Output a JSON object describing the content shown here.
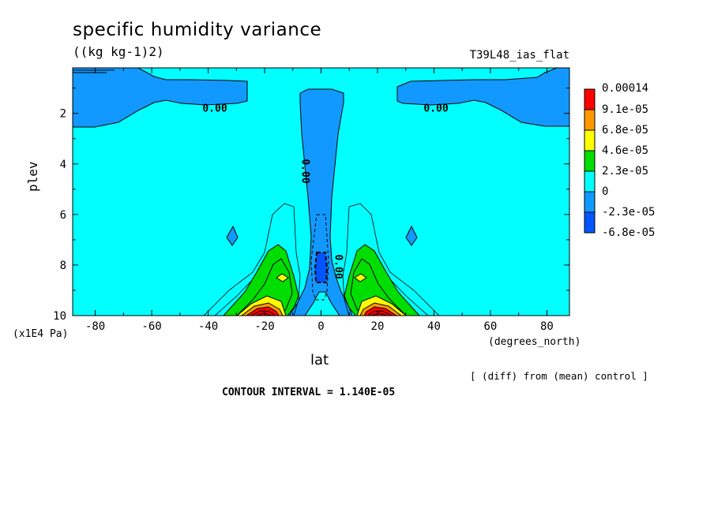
{
  "header": {
    "title": "specific humidity variance",
    "units": "((kg kg-1)2)",
    "run_label": "T39L48_ias_flat"
  },
  "footer": {
    "diff_note": "[ (diff) from (mean) control ]",
    "contour_interval": "CONTOUR INTERVAL = 1.140E-05"
  },
  "chart_data": {
    "type": "contour",
    "xlabel": "lat",
    "x_unit": "(degrees_north)",
    "ylabel": "plev",
    "y_unit": "(x1E4 Pa)",
    "xlim": [
      -88,
      88
    ],
    "ylim": [
      10,
      0.2
    ],
    "x_ticks": [
      -80,
      -60,
      -40,
      -20,
      0,
      20,
      40,
      60,
      80
    ],
    "y_ticks": [
      2,
      4,
      6,
      8,
      10
    ],
    "contour_interval": 1.14e-05,
    "legend": {
      "placement": "right",
      "levels": [
        "0.00014",
        "9.1e-05",
        "6.8e-05",
        "4.6e-05",
        "2.3e-05",
        "0",
        "-2.3e-05",
        "-6.8e-05"
      ],
      "colors": [
        "#ff0000",
        "#ff9900",
        "#ffff00",
        "#00dd00",
        "#00ffff",
        "#1199ff",
        "#0055ff"
      ]
    },
    "contour_labels": [
      "0.00",
      "0.00",
      "0.00",
      "0.00"
    ],
    "regions": [
      {
        "level": "negative",
        "color": "#1199ff",
        "where": "upper levels poleward of ~40 degrees, both hemispheres"
      },
      {
        "level": "negative",
        "color": "#1199ff",
        "where": "equatorial column from plev ~1 to ~10"
      },
      {
        "level": "-6.8e-05",
        "color": "#0055ff",
        "where": "equator near plev 7.5-8.8"
      },
      {
        "level": "positive",
        "color": "#00dd00",
        "where": "~10-30 degrees near plev 7-10, both hemispheres"
      },
      {
        "level": "0.00014",
        "color": "#ff0000",
        "where": "~15-22 degrees at plev ~9.5-10, both hemispheres"
      }
    ]
  }
}
